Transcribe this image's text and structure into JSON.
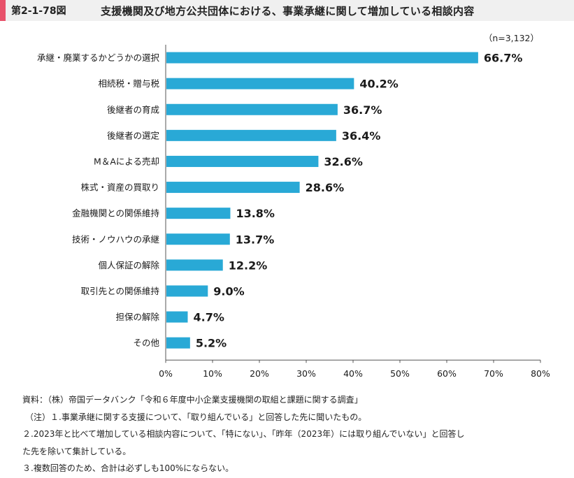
{
  "header": {
    "figure_number": "第2-1-78図",
    "title": "支援機関及び地方公共団体における、事業承継に関して増加している相談内容"
  },
  "sample_size": "（n=3,132）",
  "chart_data": {
    "type": "bar",
    "orientation": "horizontal",
    "categories": [
      "承継・廃業するかどうかの選択",
      "相続税・贈与税",
      "後継者の育成",
      "後継者の選定",
      "M＆Aによる売却",
      "株式・資産の買取り",
      "金融機関との関係維持",
      "技術・ノウハウの承継",
      "個人保証の解除",
      "取引先との関係維持",
      "担保の解除",
      "その他"
    ],
    "values": [
      66.7,
      40.2,
      36.7,
      36.4,
      32.6,
      28.6,
      13.8,
      13.7,
      12.2,
      9.0,
      4.7,
      5.2
    ],
    "value_labels": [
      "66.7%",
      "40.2%",
      "36.7%",
      "36.4%",
      "32.6%",
      "28.6%",
      "13.8%",
      "13.7%",
      "12.2%",
      "9.0%",
      "4.7%",
      "5.2%"
    ],
    "xlim": [
      0,
      80
    ],
    "x_ticks": [
      0,
      10,
      20,
      30,
      40,
      50,
      60,
      70,
      80
    ],
    "x_tick_labels": [
      "0%",
      "10%",
      "20%",
      "30%",
      "40%",
      "50%",
      "60%",
      "70%",
      "80%"
    ],
    "bar_color": "#29a9d6",
    "grid": false,
    "legend": "none"
  },
  "notes": [
    "資料：（株）帝国データバンク「令和６年度中小企業支援機関の取組と課題に関する調査」",
    "（注）１.事業承継に関する支援について、「取り組んでいる」と回答した先に聞いたもの。",
    "２.2023年と比べて増加している相談内容について、「特にない」、「昨年（2023年）には取り組んでいない」と回答し",
    "た先を除いて集計している。",
    "３.複数回答のため、合計は必ずしも100%にならない。"
  ]
}
